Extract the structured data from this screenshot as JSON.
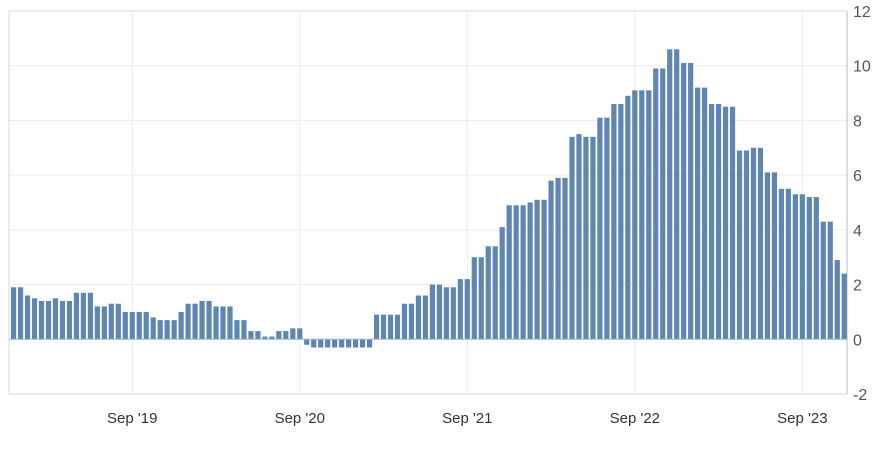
{
  "chart_data": {
    "type": "bar",
    "title": "",
    "xlabel": "",
    "ylabel": "",
    "ylim": [
      -2,
      12
    ],
    "yticks": [
      -2,
      0,
      2,
      4,
      6,
      8,
      10,
      12
    ],
    "y_axis_side": "right",
    "grid": true,
    "legend": "none",
    "x_tick_labels": [
      "Sep '19",
      "Sep '20",
      "Sep '21",
      "Sep '22",
      "Sep '23"
    ],
    "x_tick_bar_index": [
      17,
      41,
      65,
      89,
      113
    ],
    "bar_color": "#5f86b3",
    "values": [
      1.9,
      1.9,
      1.6,
      1.5,
      1.4,
      1.4,
      1.5,
      1.4,
      1.4,
      1.7,
      1.7,
      1.7,
      1.2,
      1.2,
      1.3,
      1.3,
      1.0,
      1.0,
      1.0,
      1.0,
      0.8,
      0.7,
      0.7,
      0.7,
      1.0,
      1.3,
      1.3,
      1.4,
      1.4,
      1.2,
      1.2,
      1.2,
      0.7,
      0.7,
      0.3,
      0.3,
      0.1,
      0.1,
      0.3,
      0.3,
      0.4,
      0.4,
      -0.2,
      -0.3,
      -0.3,
      -0.3,
      -0.3,
      -0.3,
      -0.3,
      -0.3,
      -0.3,
      -0.3,
      0.9,
      0.9,
      0.9,
      0.9,
      1.3,
      1.3,
      1.6,
      1.6,
      2.0,
      2.0,
      1.9,
      1.9,
      2.2,
      2.2,
      3.0,
      3.0,
      3.4,
      3.4,
      4.1,
      4.9,
      4.9,
      4.9,
      5.0,
      5.1,
      5.1,
      5.8,
      5.9,
      5.9,
      7.4,
      7.5,
      7.4,
      7.4,
      8.1,
      8.1,
      8.6,
      8.6,
      8.9,
      9.1,
      9.1,
      9.1,
      9.9,
      9.9,
      10.6,
      10.6,
      10.1,
      10.1,
      9.2,
      9.2,
      8.6,
      8.6,
      8.5,
      8.5,
      6.9,
      6.9,
      7.0,
      7.0,
      6.1,
      6.1,
      5.5,
      5.5,
      5.3,
      5.3,
      5.2,
      5.2,
      4.3,
      4.3,
      2.9,
      2.4
    ]
  }
}
